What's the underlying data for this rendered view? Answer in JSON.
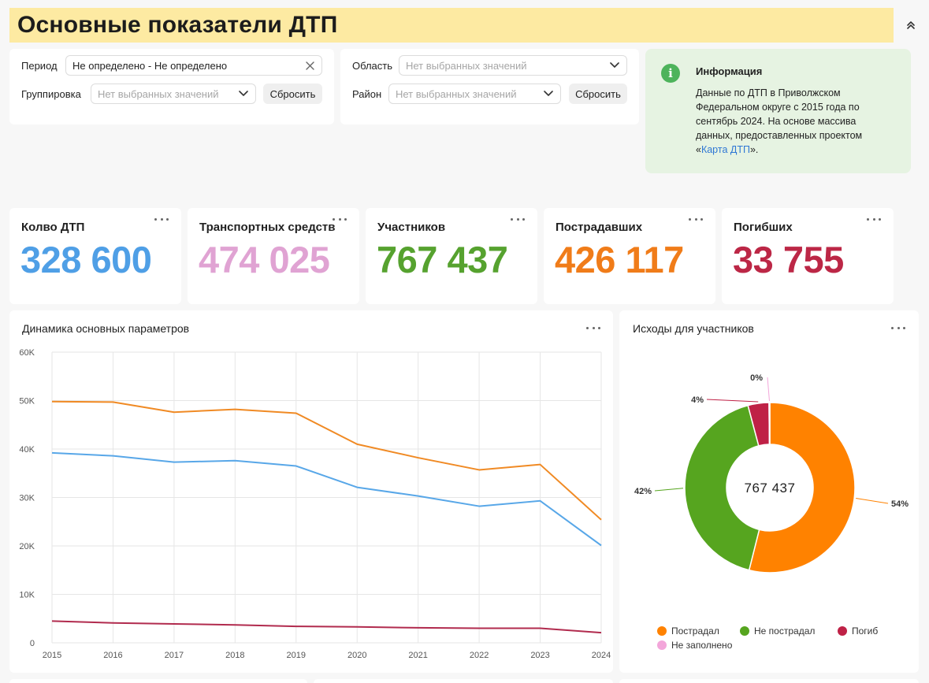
{
  "header": {
    "title": "Основные показатели ДТП"
  },
  "filters_left": {
    "period_label": "Период",
    "period_value": "Не определено - Не определено",
    "grouping_label": "Группировка",
    "grouping_placeholder": "Нет выбранных значений",
    "reset_label": "Сбросить"
  },
  "filters_right": {
    "region_label": "Область",
    "region_placeholder": "Нет выбранных значений",
    "district_label": "Район",
    "district_placeholder": "Нет выбранных значений",
    "reset_label": "Сбросить"
  },
  "info": {
    "title": "Информация",
    "text_before": "Данные по ДТП в Приволжском Федеральном округе с 2015 года по сентябрь 2024. На основе массива данных, предоставленных проектом «",
    "link_text": "Карта ДТП",
    "text_after": "»."
  },
  "kpis": [
    {
      "title": "Колво ДТП",
      "value": "328 600",
      "color": "#4f9fe6"
    },
    {
      "title": "Транспортных средств",
      "value": "474 025",
      "color": "#e0a3d3"
    },
    {
      "title": "Участников",
      "value": "767 437",
      "color": "#56a22f"
    },
    {
      "title": "Пострадавших",
      "value": "426 117",
      "color": "#f07c19"
    },
    {
      "title": "Погибших",
      "value": "33 755",
      "color": "#bc2746"
    }
  ],
  "line_chart": {
    "title": "Динамика основных параметров"
  },
  "donut_chart": {
    "title": "Исходы для участников",
    "center_value": "767 437"
  },
  "chart_data": [
    {
      "type": "line",
      "title": "Динамика основных параметров",
      "x": [
        "2015",
        "2016",
        "2017",
        "2018",
        "2019",
        "2020",
        "2021",
        "2022",
        "2023",
        "2024"
      ],
      "ylim": [
        0,
        60000
      ],
      "yticks": [
        0,
        10000,
        20000,
        30000,
        40000,
        50000,
        60000
      ],
      "ytick_labels": [
        "0",
        "10K",
        "20K",
        "30K",
        "40K",
        "50K",
        "60K"
      ],
      "grid": true,
      "series": [
        {
          "values": [
            49800,
            49700,
            47600,
            48200,
            47400,
            41000,
            38200,
            35700,
            36800,
            25400
          ],
          "color": "#f08a24"
        },
        {
          "values": [
            39200,
            38600,
            37300,
            37600,
            36500,
            32100,
            30300,
            28200,
            29300,
            20100
          ],
          "color": "#58a7e8"
        },
        {
          "values": [
            4500,
            4100,
            3900,
            3700,
            3400,
            3300,
            3100,
            3000,
            3000,
            2100
          ],
          "color": "#b12b4e"
        }
      ]
    },
    {
      "type": "pie",
      "title": "Исходы для участников",
      "donut": true,
      "center_label": "767 437",
      "legend_position": "bottom",
      "slices": [
        {
          "label": "Пострадал",
          "value": 54,
          "display": "54%",
          "color": "#ff8200"
        },
        {
          "label": "Не пострадал",
          "value": 42,
          "display": "42%",
          "color": "#56a51f"
        },
        {
          "label": "Погиб",
          "value": 4,
          "display": "4%",
          "color": "#bf2146"
        },
        {
          "label": "Не заполнено",
          "value": 0.15,
          "display": "0%",
          "color": "#f3a6da"
        }
      ]
    }
  ]
}
